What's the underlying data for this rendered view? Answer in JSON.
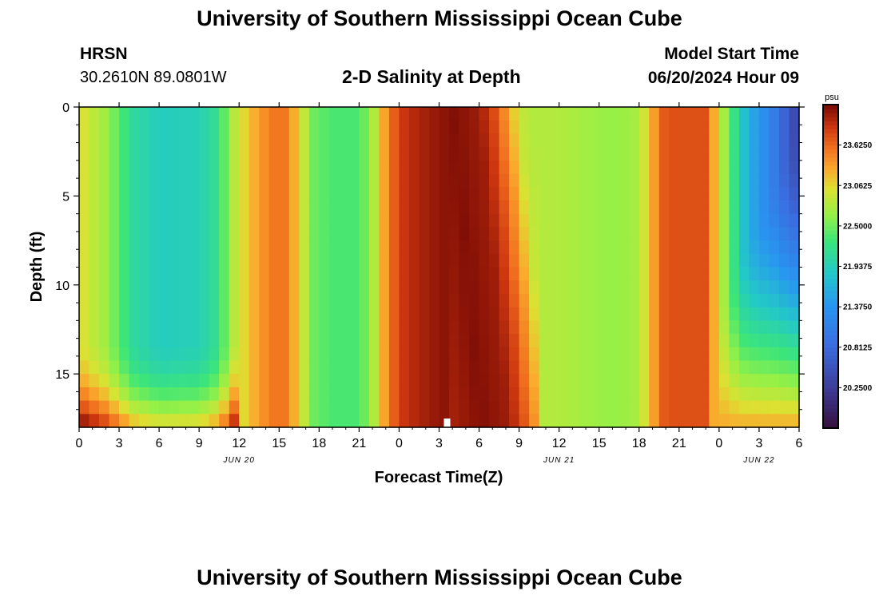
{
  "header": {
    "title": "University of Southern Mississippi Ocean Cube",
    "station_name": "HRSN",
    "coordinates": "30.2610N  89.0801W",
    "subtitle": "2-D Salinity at Depth",
    "model_start_label": "Model Start Time",
    "model_start_value": "06/20/2024 Hour 09"
  },
  "footer": {
    "title_repeat": "University of Southern Mississippi Ocean Cube"
  },
  "chart_data": {
    "type": "heatmap",
    "title": "2-D Salinity at Depth",
    "xlabel": "Forecast Time(Z)",
    "ylabel": "Depth (ft)",
    "x_unit": "hours from Jun 20 00Z",
    "x_range": [
      0,
      54
    ],
    "y_range": [
      0,
      18
    ],
    "y_reversed": true,
    "x_tick_values": [
      0,
      3,
      6,
      9,
      12,
      15,
      18,
      21,
      24,
      27,
      30,
      33,
      36,
      39,
      42,
      45,
      48,
      51,
      54
    ],
    "x_tick_labels": [
      "0",
      "3",
      "6",
      "9",
      "12",
      "15",
      "18",
      "21",
      "0",
      "3",
      "6",
      "9",
      "12",
      "15",
      "18",
      "21",
      "0",
      "3",
      "6"
    ],
    "date_labels": [
      {
        "x": 12,
        "label": "JUN 20"
      },
      {
        "x": 36,
        "label": "JUN 21"
      },
      {
        "x": 51,
        "label": "JUN 22"
      }
    ],
    "y_tick_values": [
      0,
      5,
      10,
      15
    ],
    "y_tick_labels": [
      "0",
      "5",
      "10",
      "15"
    ],
    "colorbar": {
      "unit": "psu",
      "min": 19.6875,
      "max": 24.1875,
      "labels": [
        "23.6250",
        "23.0625",
        "22.5000",
        "21.9375",
        "21.3750",
        "20.8125",
        "20.2500"
      ],
      "label_values": [
        23.625,
        23.0625,
        22.5,
        21.9375,
        21.375,
        20.8125,
        20.25
      ]
    },
    "marker": {
      "x": 27.6,
      "depth": 18,
      "note": "white square at bottom edge"
    },
    "surface_profile_psu": [
      {
        "t": 0,
        "s": 23.05
      },
      {
        "t": 2,
        "s": 22.7
      },
      {
        "t": 4,
        "s": 22.1
      },
      {
        "t": 6,
        "s": 21.9
      },
      {
        "t": 9,
        "s": 21.95
      },
      {
        "t": 10.5,
        "s": 22.2
      },
      {
        "t": 11.5,
        "s": 22.8
      },
      {
        "t": 12.5,
        "s": 23.1
      },
      {
        "t": 13.5,
        "s": 23.35
      },
      {
        "t": 14.5,
        "s": 23.55
      },
      {
        "t": 15.5,
        "s": 23.55
      },
      {
        "t": 16.5,
        "s": 23.1
      },
      {
        "t": 17.5,
        "s": 22.5
      },
      {
        "t": 19,
        "s": 22.35
      },
      {
        "t": 21,
        "s": 22.35
      },
      {
        "t": 22,
        "s": 22.7
      },
      {
        "t": 23,
        "s": 23.4
      },
      {
        "t": 24,
        "s": 23.85
      },
      {
        "t": 25.5,
        "s": 24.0
      },
      {
        "t": 28,
        "s": 24.15
      },
      {
        "t": 30,
        "s": 24.05
      },
      {
        "t": 31,
        "s": 23.8
      },
      {
        "t": 32,
        "s": 23.4
      },
      {
        "t": 33,
        "s": 22.9
      },
      {
        "t": 34,
        "s": 22.8
      },
      {
        "t": 36,
        "s": 22.8
      },
      {
        "t": 40,
        "s": 22.65
      },
      {
        "t": 42,
        "s": 22.75
      },
      {
        "t": 43,
        "s": 23.3
      },
      {
        "t": 44,
        "s": 23.75
      },
      {
        "t": 47,
        "s": 23.75
      },
      {
        "t": 48,
        "s": 23.0
      },
      {
        "t": 49,
        "s": 22.3
      },
      {
        "t": 50,
        "s": 21.7
      },
      {
        "t": 52,
        "s": 21.1
      },
      {
        "t": 54,
        "s": 20.3
      }
    ]
  }
}
